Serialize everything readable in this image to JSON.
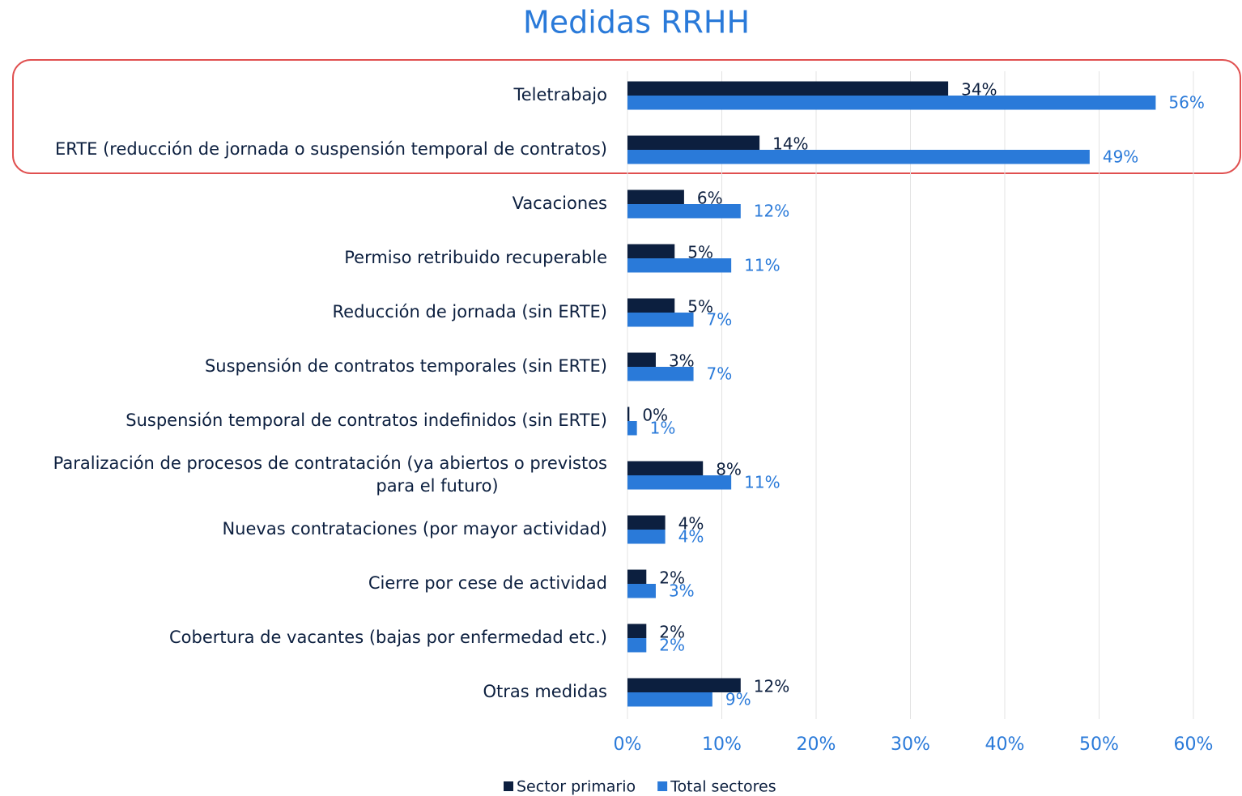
{
  "chart_data": {
    "type": "bar",
    "orientation": "horizontal",
    "title": "Medidas RRHH",
    "categories": [
      "Teletrabajo",
      "ERTE (reducción de jornada o suspensión temporal de contratos)",
      "Vacaciones",
      "Permiso retribuido recuperable",
      "Reducción de jornada (sin ERTE)",
      "Suspensión de contratos temporales (sin ERTE)",
      "Suspensión temporal de contratos indefinidos (sin ERTE)",
      "Paralización de procesos de contratación (ya abiertos o previstos para el futuro)",
      "Nuevas contrataciones (por mayor actividad)",
      "Cierre por cese de actividad",
      "Cobertura de vacantes (bajas por enfermedad etc.)",
      "Otras medidas"
    ],
    "series": [
      {
        "name": "Sector primario",
        "color": "#0c1f3f",
        "values": [
          34,
          14,
          6,
          5,
          5,
          3,
          0.2,
          8,
          4,
          2,
          2,
          12
        ],
        "value_labels": [
          "34%",
          "14%",
          "6%",
          "5%",
          "5%",
          "3%",
          "0%",
          "8%",
          "4%",
          "2%",
          "2%",
          "12%"
        ]
      },
      {
        "name": "Total sectores",
        "color": "#2a7ad9",
        "values": [
          56,
          49,
          12,
          11,
          7,
          7,
          1,
          11,
          4,
          3,
          2,
          9
        ],
        "value_labels": [
          "56%",
          "49%",
          "12%",
          "11%",
          "7%",
          "7%",
          "1%",
          "11%",
          "4%",
          "3%",
          "2%",
          "9%"
        ]
      }
    ],
    "xlim": [
      0,
      60
    ],
    "xticks": [
      {
        "value": 0,
        "label": "0%"
      },
      {
        "value": 10,
        "label": "10%"
      },
      {
        "value": 20,
        "label": "20%"
      },
      {
        "value": 30,
        "label": "30%"
      },
      {
        "value": 40,
        "label": "40%"
      },
      {
        "value": 50,
        "label": "50%"
      },
      {
        "value": 60,
        "label": "60%"
      }
    ],
    "grid": true,
    "legend": "bottom"
  }
}
